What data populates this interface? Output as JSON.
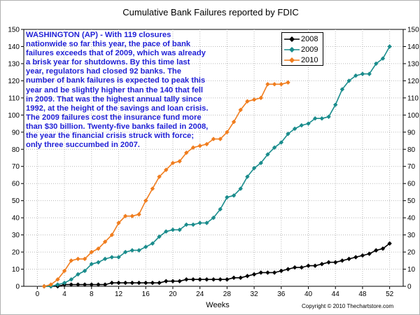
{
  "chart_data": {
    "type": "line",
    "title": "Cumulative Bank Failures reported by FDIC",
    "xlabel": "Weeks",
    "ylabel": "",
    "xlim": [
      -2,
      54
    ],
    "ylim": [
      0,
      150
    ],
    "x_ticks": [
      "0",
      "4",
      "8",
      "12",
      "16",
      "20",
      "24",
      "28",
      "32",
      "36",
      "40",
      "44",
      "48",
      "52"
    ],
    "y_ticks": [
      "0",
      "10",
      "20",
      "30",
      "40",
      "50",
      "60",
      "70",
      "80",
      "90",
      "100",
      "110",
      "120",
      "130",
      "140",
      "150"
    ],
    "grid": true,
    "legend_position": "top-right",
    "annotation": "WASHINGTON (AP) - With 119 closures nationwide so far this year, the pace of bank failures exceeds that of 2009, which was already a brisk year for shutdowns. By this time last year, regulators had closed 92 banks.  The number of bank failures is expected to peak this year and be slightly higher than the 140 that fell in 2009. That was the highest annual tally since 1992, at the height of the savings and loan crisis. The 2009 failures cost the insurance fund more than $30 billion. Twenty-five banks failed in 2008, the year the financial crisis struck with force; only three succumbed in 2007.",
    "copyright": "Copyright © 2010 Thechartstore.com",
    "series": [
      {
        "name": "2008",
        "color": "#000000",
        "marker": "diamond",
        "x": [
          1,
          2,
          3,
          4,
          5,
          6,
          7,
          8,
          9,
          10,
          11,
          12,
          13,
          14,
          15,
          16,
          17,
          18,
          19,
          20,
          21,
          22,
          23,
          24,
          25,
          26,
          27,
          28,
          29,
          30,
          31,
          32,
          33,
          34,
          35,
          36,
          37,
          38,
          39,
          40,
          41,
          42,
          43,
          44,
          45,
          46,
          47,
          48,
          49,
          50,
          51,
          52
        ],
        "y": [
          0,
          0,
          0,
          1,
          1,
          1,
          1,
          1,
          1,
          1,
          2,
          2,
          2,
          2,
          2,
          2,
          2,
          2,
          3,
          3,
          3,
          4,
          4,
          4,
          4,
          4,
          4,
          4,
          5,
          5,
          6,
          7,
          8,
          8,
          8,
          9,
          10,
          11,
          11,
          12,
          12,
          13,
          14,
          14,
          15,
          16,
          17,
          18,
          19,
          21,
          22,
          25
        ]
      },
      {
        "name": "2009",
        "color": "#1a8c8c",
        "marker": "diamond",
        "x": [
          1,
          2,
          3,
          4,
          5,
          6,
          7,
          8,
          9,
          10,
          11,
          12,
          13,
          14,
          15,
          16,
          17,
          18,
          19,
          20,
          21,
          22,
          23,
          24,
          25,
          26,
          27,
          28,
          29,
          30,
          31,
          32,
          33,
          34,
          35,
          36,
          37,
          38,
          39,
          40,
          41,
          42,
          43,
          44,
          45,
          46,
          47,
          48,
          49,
          50,
          51,
          52
        ],
        "y": [
          0,
          0,
          1,
          2,
          4,
          7,
          9,
          13,
          14,
          16,
          17,
          17,
          20,
          21,
          21,
          23,
          25,
          29,
          32,
          33,
          33,
          36,
          36,
          37,
          37,
          40,
          45,
          52,
          53,
          57,
          64,
          69,
          72,
          77,
          81,
          84,
          89,
          92,
          94,
          95,
          98,
          98,
          99,
          106,
          115,
          120,
          123,
          124,
          124,
          130,
          133,
          140
        ]
      },
      {
        "name": "2010",
        "color": "#f07d1e",
        "marker": "diamond",
        "x": [
          1,
          2,
          3,
          4,
          5,
          6,
          7,
          8,
          9,
          10,
          11,
          12,
          13,
          14,
          15,
          16,
          17,
          18,
          19,
          20,
          21,
          22,
          23,
          24,
          25,
          26,
          27,
          28,
          29,
          30,
          31,
          32,
          33,
          34,
          35,
          36,
          37
        ],
        "y": [
          0,
          1,
          4,
          9,
          15,
          16,
          16,
          20,
          22,
          26,
          30,
          37,
          41,
          41,
          42,
          50,
          57,
          64,
          68,
          72,
          73,
          78,
          81,
          82,
          83,
          86,
          86,
          90,
          96,
          103,
          108,
          109,
          110,
          118,
          118,
          118,
          119
        ]
      }
    ]
  }
}
